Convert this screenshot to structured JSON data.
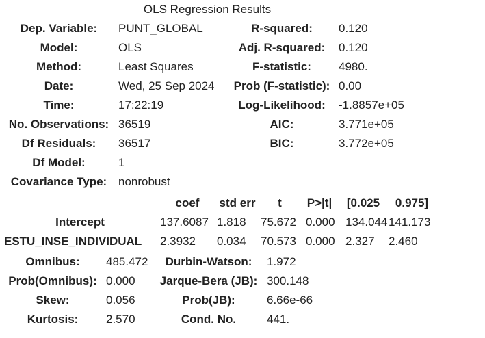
{
  "caption": "OLS Regression Results",
  "summary": {
    "left": [
      {
        "label": "Dep. Variable:",
        "value": "PUNT_GLOBAL"
      },
      {
        "label": "Model:",
        "value": "OLS"
      },
      {
        "label": "Method:",
        "value": "Least Squares"
      },
      {
        "label": "Date:",
        "value": "Wed, 25 Sep 2024"
      },
      {
        "label": "Time:",
        "value": "17:22:19"
      },
      {
        "label": "No. Observations:",
        "value": "36519"
      },
      {
        "label": "Df Residuals:",
        "value": "36517"
      },
      {
        "label": "Df Model:",
        "value": "1"
      },
      {
        "label": "Covariance Type:",
        "value": "nonrobust"
      }
    ],
    "right": [
      {
        "label": "R-squared:",
        "value": "0.120"
      },
      {
        "label": "Adj. R-squared:",
        "value": "0.120"
      },
      {
        "label": "F-statistic:",
        "value": "4980."
      },
      {
        "label": "Prob (F-statistic):",
        "value": "0.00"
      },
      {
        "label": "Log-Likelihood:",
        "value": "-1.8857e+05"
      },
      {
        "label": "AIC:",
        "value": "3.771e+05"
      },
      {
        "label": "BIC:",
        "value": "3.772e+05"
      }
    ]
  },
  "coefficients": {
    "headers": [
      "coef",
      "std err",
      "t",
      "P>|t|",
      "[0.025",
      "0.975]"
    ],
    "rows": [
      {
        "name": "Intercept",
        "values": [
          "137.6087",
          "1.818",
          "75.672",
          "0.000",
          "134.044",
          "141.173"
        ]
      },
      {
        "name": "ESTU_INSE_INDIVIDUAL",
        "values": [
          "2.3932",
          "0.034",
          "70.573",
          "0.000",
          "2.327",
          "2.460"
        ]
      }
    ]
  },
  "diagnostics": {
    "left": [
      {
        "label": "Omnibus:",
        "value": "485.472"
      },
      {
        "label": "Prob(Omnibus):",
        "value": "0.000"
      },
      {
        "label": "Skew:",
        "value": "0.056"
      },
      {
        "label": "Kurtosis:",
        "value": "2.570"
      }
    ],
    "right": [
      {
        "label": "Durbin-Watson:",
        "value": "1.972"
      },
      {
        "label": "Jarque-Bera (JB):",
        "value": "300.148"
      },
      {
        "label": "Prob(JB):",
        "value": "6.66e-66"
      },
      {
        "label": "Cond. No.",
        "value": "441."
      }
    ]
  }
}
